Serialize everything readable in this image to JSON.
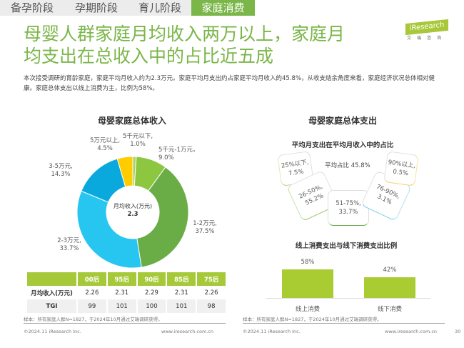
{
  "tabs": [
    {
      "label": "备孕阶段"
    },
    {
      "label": "孕期阶段"
    },
    {
      "label": "育儿阶段"
    },
    {
      "label": "家庭消费"
    }
  ],
  "logo": {
    "name": "iResearch",
    "sub": "艾瑞咨询"
  },
  "title": {
    "line1": "母婴人群家庭月均收入两万以上，家庭月",
    "line2": "均支出在总收入中的占比近五成"
  },
  "description": "本次接受调研的育龄家庭，家庭平均月收入约为2.3万元。家庭平均月支出约占家庭平均月收入的45.8%，从收支结余角度来看，家庭经济状况总体相对健康。家庭总体支出以线上消费为主，比例为58%。",
  "chart_data": [
    {
      "type": "pie",
      "title": "母婴家庭总体收入",
      "center_label": "月均收入(万元)",
      "center_value": "2.3",
      "slices": [
        {
          "label": "5千元以下,",
          "value_text": "1.0%",
          "value": 1.0,
          "color": "#a8d26a"
        },
        {
          "label": "5千元-1万元，",
          "value_text": "9.0%",
          "value": 9.0,
          "color": "#8dc63f"
        },
        {
          "label": "1-2万元,",
          "value_text": "37.5%",
          "value": 37.5,
          "color": "#6aad46"
        },
        {
          "label": "2-3万元,",
          "value_text": "33.7%",
          "value": 33.7,
          "color": "#26c6f0"
        },
        {
          "label": "3-5万元,",
          "value_text": "14.3%",
          "value": 14.3,
          "color": "#0aa9dd"
        },
        {
          "label": "5万元以上,",
          "value_text": "4.5%",
          "value": 4.5,
          "color": "#ffcc00"
        }
      ]
    },
    {
      "type": "table",
      "columns": [
        "",
        "00后",
        "95后",
        "90后",
        "85后",
        "75后"
      ],
      "rows": [
        [
          "月均收入(万元)",
          "2.26",
          "2.31",
          "2.29",
          "2.31",
          "2.26"
        ],
        [
          "TGI",
          "99",
          "101",
          "100",
          "101",
          "98"
        ]
      ]
    },
    {
      "type": "other",
      "title": "母婴家庭总体支出",
      "subtitle": "平均月支出在平均月收入中的占比",
      "average": "平均占比 45.8%",
      "segments": [
        {
          "label": "25%以下,",
          "value": "7.5%"
        },
        {
          "label": "26-50%,",
          "value": "55.2%"
        },
        {
          "label": "51-75%,",
          "value": "33.7%"
        },
        {
          "label": "76-90%,",
          "value": "3.1%"
        },
        {
          "label": "90%以上,",
          "value": "0.5%"
        }
      ]
    },
    {
      "type": "bar",
      "title": "线上消费支出与线下消费支出比例",
      "categories": [
        "线上消费",
        "线下消费"
      ],
      "values": [
        58,
        42
      ],
      "value_labels": [
        "58%",
        "42%"
      ],
      "ylim": [
        0,
        100
      ]
    }
  ],
  "footer": {
    "sample": "样本：所有家庭人群N=1827，于2024年10月通过艾瑞调研获得。",
    "copyright": "©2024.11 iResearch Inc.",
    "url": "www.iresearch.com.cn",
    "page": "30"
  }
}
